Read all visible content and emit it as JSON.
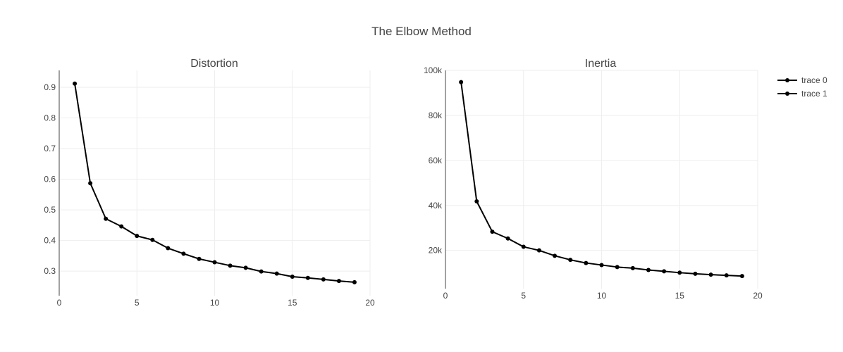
{
  "title": "The Elbow Method",
  "chart_data": [
    {
      "type": "line",
      "title": "Distortion",
      "series_name": "trace 0",
      "color": "#000000",
      "x": [
        1,
        2,
        3,
        4,
        5,
        6,
        7,
        8,
        9,
        10,
        11,
        12,
        13,
        14,
        15,
        16,
        17,
        18,
        19
      ],
      "y": [
        0.912,
        0.587,
        0.471,
        0.446,
        0.415,
        0.402,
        0.375,
        0.357,
        0.34,
        0.329,
        0.318,
        0.311,
        0.299,
        0.292,
        0.282,
        0.278,
        0.273,
        0.268,
        0.264
      ],
      "xlim": [
        0,
        20
      ],
      "ylim": [
        0.22,
        0.955
      ],
      "xticks": [
        0,
        5,
        10,
        15,
        20
      ],
      "xtick_labels": [
        "0",
        "5",
        "10",
        "15",
        "20"
      ],
      "yticks": [
        0.3,
        0.4,
        0.5,
        0.6,
        0.7,
        0.8,
        0.9
      ],
      "ytick_labels": [
        "0.3",
        "0.4",
        "0.5",
        "0.6",
        "0.7",
        "0.8",
        "0.9"
      ],
      "grid": true
    },
    {
      "type": "line",
      "title": "Inertia",
      "series_name": "trace 1",
      "color": "#000000",
      "x": [
        1,
        2,
        3,
        4,
        5,
        6,
        7,
        8,
        9,
        10,
        11,
        12,
        13,
        14,
        15,
        16,
        17,
        18,
        19
      ],
      "y": [
        94800,
        41800,
        28300,
        25300,
        21600,
        20000,
        17600,
        15800,
        14400,
        13500,
        12600,
        12100,
        11300,
        10700,
        10100,
        9600,
        9200,
        8900,
        8600
      ],
      "xlim": [
        0,
        20
      ],
      "ylim": [
        3000,
        100000
      ],
      "xticks": [
        0,
        5,
        10,
        15,
        20
      ],
      "xtick_labels": [
        "0",
        "5",
        "10",
        "15",
        "20"
      ],
      "yticks": [
        20000,
        40000,
        60000,
        80000,
        100000
      ],
      "ytick_labels": [
        "20k",
        "40k",
        "60k",
        "80k",
        "100k"
      ],
      "grid": true
    }
  ],
  "legend": {
    "placement": "top-right",
    "items": [
      {
        "label": "trace 0",
        "color": "#000000"
      },
      {
        "label": "trace 1",
        "color": "#000000"
      }
    ]
  }
}
